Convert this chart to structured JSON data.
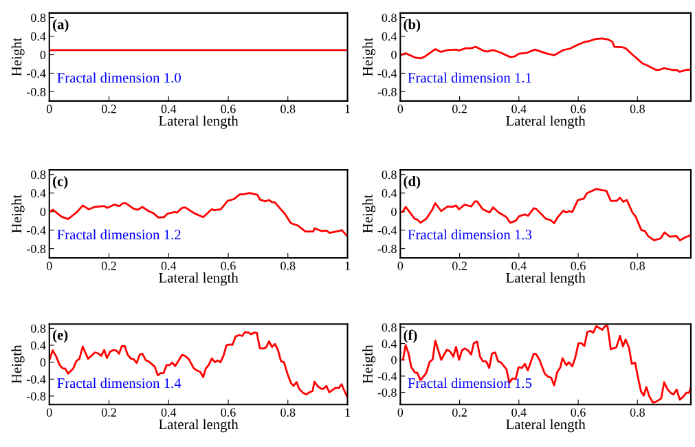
{
  "chart_data": [
    {
      "type": "line",
      "xlabel": "Lateral length",
      "ylabel": "Height",
      "annotations": [
        "(a)",
        "Fractal dimension 1.0"
      ],
      "xlim": [
        0,
        1
      ],
      "ylim": [
        -1,
        0.9
      ],
      "xticks": [
        0,
        0.2,
        0.4,
        0.6,
        0.8,
        1
      ],
      "yticks": [
        0.8,
        0.4,
        0,
        -0.4,
        -0.8
      ],
      "series": [
        {
          "color": "#ff0000",
          "x": [
            0,
            1
          ],
          "values": [
            0.1,
            0.1
          ]
        }
      ]
    },
    {
      "type": "line",
      "xlabel": "Lateral length",
      "ylabel": "Height",
      "annotations": [
        "(b)",
        "Fractal dimension 1.1"
      ],
      "xlim": [
        0,
        0.98
      ],
      "ylim": [
        -1,
        0.9
      ],
      "xticks": [
        0,
        0.2,
        0.4,
        0.6,
        0.8
      ],
      "yticks": [
        0.8,
        0.4,
        0,
        -0.4,
        -0.8
      ],
      "series": [
        {
          "color": "#ff0000",
          "x": [
            0.0,
            0.018,
            0.049,
            0.068,
            0.083,
            0.118,
            0.137,
            0.16,
            0.187,
            0.198,
            0.221,
            0.24,
            0.254,
            0.282,
            0.294,
            0.313,
            0.34,
            0.37,
            0.385,
            0.4,
            0.427,
            0.454,
            0.496,
            0.519,
            0.55,
            0.572,
            0.6,
            0.62,
            0.64,
            0.66,
            0.68,
            0.7,
            0.715,
            0.722,
            0.749,
            0.76,
            0.783,
            0.798,
            0.817,
            0.836,
            0.863,
            0.878,
            0.89,
            0.917,
            0.932,
            0.943,
            0.963,
            0.98
          ],
          "values": [
            -0.01,
            0.03,
            -0.06,
            -0.08,
            -0.04,
            0.12,
            0.06,
            0.1,
            0.11,
            0.09,
            0.14,
            0.14,
            0.17,
            0.08,
            0.07,
            0.1,
            0.04,
            -0.05,
            -0.04,
            0.02,
            0.04,
            0.11,
            0.02,
            -0.01,
            0.1,
            0.13,
            0.22,
            0.27,
            0.3,
            0.34,
            0.35,
            0.33,
            0.28,
            0.17,
            0.16,
            0.14,
            0.0,
            -0.08,
            -0.19,
            -0.24,
            -0.33,
            -0.32,
            -0.29,
            -0.33,
            -0.33,
            -0.37,
            -0.33,
            -0.32
          ]
        }
      ]
    },
    {
      "type": "line",
      "xlabel": "Lateral length",
      "ylabel": "Height",
      "annotations": [
        "(c)",
        "Fractal dimension 1.2"
      ],
      "xlim": [
        0,
        1
      ],
      "ylim": [
        -1,
        0.9
      ],
      "xticks": [
        0,
        0.2,
        0.4,
        0.6,
        0.8,
        1
      ],
      "yticks": [
        0.8,
        0.4,
        0,
        -0.4,
        -0.8
      ],
      "series": [
        {
          "color": "#ff0000",
          "x": [
            0.003,
            0.012,
            0.041,
            0.063,
            0.091,
            0.112,
            0.132,
            0.153,
            0.184,
            0.194,
            0.218,
            0.235,
            0.247,
            0.257,
            0.283,
            0.297,
            0.312,
            0.333,
            0.35,
            0.366,
            0.385,
            0.395,
            0.419,
            0.429,
            0.445,
            0.456,
            0.487,
            0.516,
            0.545,
            0.552,
            0.575,
            0.598,
            0.619,
            0.639,
            0.652,
            0.671,
            0.698,
            0.706,
            0.725,
            0.737,
            0.747,
            0.756,
            0.779,
            0.79,
            0.81,
            0.833,
            0.859,
            0.885,
            0.89,
            0.913,
            0.93,
            0.94,
            0.971,
            0.981,
            0.998
          ],
          "values": [
            0.0,
            0.04,
            -0.11,
            -0.16,
            -0.02,
            0.13,
            0.05,
            0.1,
            0.12,
            0.08,
            0.15,
            0.12,
            0.18,
            0.18,
            0.06,
            0.04,
            0.1,
            0.01,
            -0.04,
            -0.13,
            -0.12,
            -0.05,
            -0.01,
            -0.02,
            0.08,
            0.09,
            -0.04,
            -0.12,
            0.05,
            0.03,
            0.05,
            0.23,
            0.27,
            0.37,
            0.37,
            0.4,
            0.36,
            0.26,
            0.22,
            0.25,
            0.2,
            0.2,
            0.03,
            -0.05,
            -0.25,
            -0.3,
            -0.43,
            -0.43,
            -0.36,
            -0.42,
            -0.41,
            -0.46,
            -0.42,
            -0.4,
            -0.52
          ]
        }
      ]
    },
    {
      "type": "line",
      "xlabel": "Lateral length",
      "ylabel": "Height",
      "annotations": [
        "(d)",
        "Fractal dimension 1.3"
      ],
      "xlim": [
        0,
        0.98
      ],
      "ylim": [
        -1,
        0.9
      ],
      "xticks": [
        0,
        0.2,
        0.4,
        0.6,
        0.8
      ],
      "yticks": [
        0.8,
        0.4,
        0,
        -0.4,
        -0.8
      ],
      "series": [
        {
          "color": "#ff0000",
          "x": [
            0.007,
            0.018,
            0.03,
            0.049,
            0.057,
            0.068,
            0.087,
            0.106,
            0.118,
            0.138,
            0.16,
            0.175,
            0.188,
            0.198,
            0.217,
            0.239,
            0.252,
            0.259,
            0.278,
            0.301,
            0.313,
            0.332,
            0.358,
            0.37,
            0.389,
            0.401,
            0.42,
            0.431,
            0.45,
            0.458,
            0.492,
            0.506,
            0.519,
            0.531,
            0.55,
            0.56,
            0.569,
            0.58,
            0.599,
            0.619,
            0.63,
            0.645,
            0.661,
            0.68,
            0.695,
            0.71,
            0.729,
            0.741,
            0.752,
            0.764,
            0.783,
            0.794,
            0.813,
            0.825,
            0.836,
            0.856,
            0.878,
            0.891,
            0.909,
            0.932,
            0.943,
            0.963,
            0.98
          ],
          "values": [
            -0.01,
            0.1,
            0.0,
            -0.16,
            -0.17,
            -0.24,
            -0.16,
            0.02,
            0.18,
            0.01,
            0.11,
            0.1,
            0.13,
            0.05,
            0.15,
            0.11,
            0.22,
            0.22,
            0.05,
            -0.02,
            0.09,
            -0.02,
            -0.12,
            -0.24,
            -0.2,
            -0.1,
            -0.06,
            -0.09,
            0.07,
            0.06,
            -0.16,
            -0.18,
            -0.25,
            -0.12,
            0.02,
            -0.02,
            0.01,
            -0.01,
            0.25,
            0.28,
            0.4,
            0.44,
            0.49,
            0.46,
            0.45,
            0.23,
            0.23,
            0.3,
            0.21,
            0.25,
            -0.02,
            -0.11,
            -0.4,
            -0.42,
            -0.53,
            -0.62,
            -0.58,
            -0.45,
            -0.54,
            -0.53,
            -0.62,
            -0.55,
            -0.51
          ]
        }
      ]
    },
    {
      "type": "line",
      "xlabel": "Lateral length",
      "ylabel": "Heigth",
      "annotations": [
        "(e)",
        "Fractal dimension 1.4"
      ],
      "xlim": [
        0,
        1
      ],
      "ylim": [
        -1,
        0.9
      ],
      "xticks": [
        0,
        0.2,
        0.4,
        0.6,
        0.8,
        1
      ],
      "yticks": [
        0.8,
        0.4,
        0,
        -0.4,
        -0.8
      ],
      "series": [
        {
          "color": "#ff0000",
          "x": [
            0.002,
            0.011,
            0.022,
            0.034,
            0.045,
            0.053,
            0.063,
            0.08,
            0.091,
            0.101,
            0.112,
            0.13,
            0.153,
            0.163,
            0.174,
            0.184,
            0.193,
            0.204,
            0.216,
            0.226,
            0.234,
            0.243,
            0.253,
            0.263,
            0.274,
            0.283,
            0.293,
            0.303,
            0.312,
            0.324,
            0.333,
            0.353,
            0.364,
            0.373,
            0.383,
            0.393,
            0.403,
            0.412,
            0.422,
            0.445,
            0.455,
            0.468,
            0.485,
            0.495,
            0.505,
            0.516,
            0.525,
            0.535,
            0.545,
            0.555,
            0.564,
            0.574,
            0.584,
            0.594,
            0.605,
            0.614,
            0.625,
            0.637,
            0.647,
            0.656,
            0.667,
            0.677,
            0.687,
            0.696,
            0.706,
            0.717,
            0.727,
            0.737,
            0.747,
            0.757,
            0.767,
            0.777,
            0.787,
            0.798,
            0.81,
            0.819,
            0.829,
            0.838,
            0.852,
            0.862,
            0.873,
            0.883,
            0.889,
            0.902,
            0.913,
            0.919,
            0.929,
            0.939,
            0.949,
            0.959,
            0.971,
            0.98,
            0.99,
            1.0
          ],
          "values": [
            0.09,
            0.28,
            0.15,
            -0.06,
            -0.15,
            -0.15,
            -0.27,
            -0.15,
            0.03,
            0.08,
            0.37,
            0.08,
            0.23,
            0.21,
            0.15,
            0.29,
            0.1,
            0.25,
            0.29,
            0.27,
            0.2,
            0.38,
            0.38,
            0.17,
            0.08,
            0.07,
            -0.02,
            0.18,
            0.2,
            0.04,
            0.02,
            -0.1,
            -0.31,
            -0.26,
            -0.26,
            -0.07,
            -0.07,
            -0.01,
            -0.09,
            0.17,
            0.15,
            0.07,
            -0.15,
            -0.2,
            -0.22,
            -0.35,
            -0.15,
            -0.06,
            0.09,
            0.0,
            0.04,
            0.0,
            0.15,
            0.4,
            0.42,
            0.41,
            0.61,
            0.64,
            0.62,
            0.71,
            0.7,
            0.66,
            0.7,
            0.69,
            0.33,
            0.32,
            0.35,
            0.49,
            0.36,
            0.43,
            0.28,
            0.02,
            0.0,
            -0.26,
            -0.49,
            -0.56,
            -0.47,
            -0.63,
            -0.73,
            -0.76,
            -0.71,
            -0.68,
            -0.46,
            -0.58,
            -0.63,
            -0.63,
            -0.56,
            -0.71,
            -0.66,
            -0.61,
            -0.61,
            -0.52,
            -0.68,
            -0.83
          ]
        }
      ]
    },
    {
      "type": "line",
      "xlabel": "Lateral length",
      "ylabel": "Heigth",
      "annotations": [
        "(f)",
        "Fractal dimension 1.5"
      ],
      "xlim": [
        0,
        0.98
      ],
      "ylim": [
        -1.1,
        0.88
      ],
      "xticks": [
        0,
        0.2,
        0.4,
        0.6,
        0.8
      ],
      "yticks": [
        0.8,
        0.4,
        0,
        -0.4,
        -0.8
      ],
      "series": [
        {
          "color": "#ff0000",
          "x": [
            0.009,
            0.018,
            0.028,
            0.037,
            0.049,
            0.057,
            0.068,
            0.087,
            0.099,
            0.109,
            0.118,
            0.138,
            0.157,
            0.167,
            0.179,
            0.188,
            0.198,
            0.208,
            0.217,
            0.229,
            0.239,
            0.248,
            0.259,
            0.269,
            0.278,
            0.29,
            0.3,
            0.309,
            0.32,
            0.33,
            0.339,
            0.358,
            0.368,
            0.378,
            0.389,
            0.399,
            0.41,
            0.42,
            0.43,
            0.45,
            0.458,
            0.469,
            0.488,
            0.5,
            0.509,
            0.519,
            0.529,
            0.54,
            0.547,
            0.56,
            0.569,
            0.58,
            0.59,
            0.601,
            0.611,
            0.621,
            0.631,
            0.641,
            0.651,
            0.661,
            0.67,
            0.681,
            0.691,
            0.699,
            0.71,
            0.729,
            0.741,
            0.751,
            0.76,
            0.771,
            0.781,
            0.792,
            0.802,
            0.812,
            0.821,
            0.83,
            0.84,
            0.852,
            0.863,
            0.88,
            0.89,
            0.901,
            0.913,
            0.922,
            0.932,
            0.943,
            0.955,
            0.965,
            0.974,
            0.98
          ],
          "values": [
            0.0,
            0.36,
            0.15,
            -0.18,
            -0.31,
            -0.32,
            -0.5,
            -0.33,
            -0.05,
            0.01,
            0.47,
            0.0,
            0.25,
            0.21,
            0.08,
            0.32,
            0.0,
            0.23,
            0.28,
            0.23,
            0.13,
            0.41,
            0.45,
            0.08,
            -0.03,
            -0.04,
            -0.2,
            0.15,
            0.18,
            -0.04,
            -0.06,
            -0.23,
            -0.56,
            -0.46,
            -0.47,
            -0.18,
            -0.2,
            -0.1,
            -0.26,
            0.15,
            0.14,
            0.01,
            -0.35,
            -0.42,
            -0.44,
            -0.63,
            -0.31,
            -0.18,
            0.04,
            -0.13,
            -0.06,
            -0.16,
            0.05,
            0.41,
            0.41,
            0.34,
            0.69,
            0.71,
            0.67,
            0.83,
            0.79,
            0.74,
            0.83,
            0.83,
            0.26,
            0.31,
            0.59,
            0.33,
            0.5,
            0.31,
            -0.1,
            -0.07,
            -0.44,
            -0.78,
            -0.88,
            -0.67,
            -0.9,
            -1.05,
            -1.03,
            -0.95,
            -0.55,
            -0.72,
            -0.82,
            -0.85,
            -0.73,
            -0.98,
            -0.9,
            -0.81,
            -0.81,
            -0.67
          ]
        }
      ]
    }
  ]
}
